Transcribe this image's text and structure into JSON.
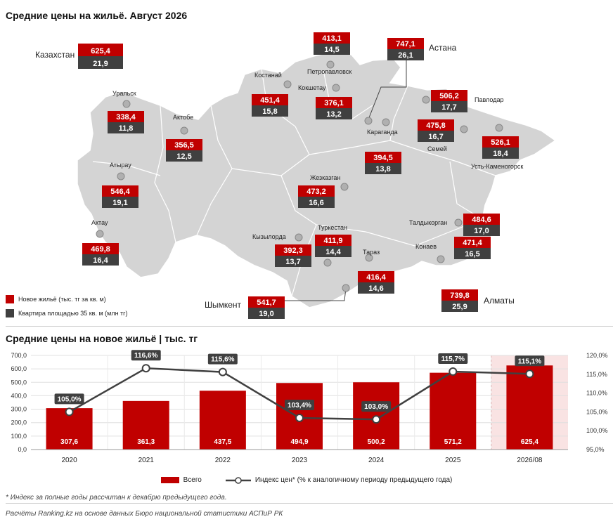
{
  "map": {
    "title": "Средние цены на жильё. Август 2026",
    "legend": {
      "price_label": "Новое жильё (тыс. тг за кв. м)",
      "flat_label": "Квартира площадью 35 кв. м (млн тг)"
    },
    "cities": [
      {
        "name": "Казахстан",
        "price": "625,4",
        "flat": "21,9"
      },
      {
        "name": "Петропавловск",
        "price": "413,1",
        "flat": "14,5"
      },
      {
        "name": "Астана",
        "price": "747,1",
        "flat": "26,1"
      },
      {
        "name": "Костанай",
        "price": "451,4",
        "flat": "15,8"
      },
      {
        "name": "Кокшетау",
        "price": "376,1",
        "flat": "13,2"
      },
      {
        "name": "Павлодар",
        "price": "506,2",
        "flat": "17,7"
      },
      {
        "name": "Уральск",
        "price": "338,4",
        "flat": "11,8"
      },
      {
        "name": "Актобе",
        "price": "356,5",
        "flat": "12,5"
      },
      {
        "name": "Семей",
        "price": "475,8",
        "flat": "16,7"
      },
      {
        "name": "Усть-Каменогорск",
        "price": "526,1",
        "flat": "18,4"
      },
      {
        "name": "Караганда",
        "price": "394,5",
        "flat": "13,8"
      },
      {
        "name": "Атырау",
        "price": "546,4",
        "flat": "19,1"
      },
      {
        "name": "Жезказган",
        "price": "473,2",
        "flat": "16,6"
      },
      {
        "name": "Талдыкорган",
        "price": "484,6",
        "flat": "17,0"
      },
      {
        "name": "Актау",
        "price": "469,8",
        "flat": "16,4"
      },
      {
        "name": "Кызылорда",
        "price": "392,3",
        "flat": "13,7"
      },
      {
        "name": "Туркестан",
        "price": "411,9",
        "flat": "14,4"
      },
      {
        "name": "Конаев",
        "price": "471,4",
        "flat": "16,5"
      },
      {
        "name": "Тараз",
        "price": "416,4",
        "flat": "14,6"
      },
      {
        "name": "Алматы",
        "price": "739,8",
        "flat": "25,9"
      },
      {
        "name": "Шымкент",
        "price": "541,7",
        "flat": "19,0"
      }
    ]
  },
  "chart_title": "Средние цены на новое жильё | тыс. тг",
  "chart_data": {
    "type": "bar",
    "categories": [
      "2020",
      "2021",
      "2022",
      "2023",
      "2024",
      "2025",
      "2026/08"
    ],
    "series": [
      {
        "name": "Всего",
        "values": [
          307.6,
          361.3,
          437.5,
          494.9,
          500.2,
          571.2,
          625.4
        ],
        "labels": [
          "307,6",
          "361,3",
          "437,5",
          "494,9",
          "500,2",
          "571,2",
          "625,4"
        ]
      },
      {
        "name": "Индекс цен* (% к аналогичному периоду предыдущего года)",
        "axis": "right",
        "type": "line",
        "values": [
          105.0,
          116.6,
          115.6,
          103.4,
          103.0,
          115.7,
          115.1
        ],
        "labels": [
          "105,0%",
          "116,6%",
          "115,6%",
          "103,4%",
          "103,0%",
          "115,7%",
          "115,1%"
        ]
      }
    ],
    "ylim": [
      0,
      700
    ],
    "yticks": [
      "0,0",
      "100,0",
      "200,0",
      "300,0",
      "400,0",
      "500,0",
      "600,0",
      "700,0"
    ],
    "y2lim": [
      95,
      120
    ],
    "y2ticks": [
      "95,0%",
      "100,0%",
      "105,0%",
      "110,0%",
      "115,0%",
      "120,0%"
    ],
    "grid": true,
    "legend_position": "bottom",
    "colors": {
      "bar": "#c00000",
      "line": "#404040",
      "label_bg": "#404040",
      "highlight_bg": "#f9e3e3"
    }
  },
  "footnote": "* Индекс за полные годы рассчитан к декабрю предыдущего года.",
  "source": "Расчёты Ranking.kz на основе данных Бюро национальной статистики АСПиР РК"
}
